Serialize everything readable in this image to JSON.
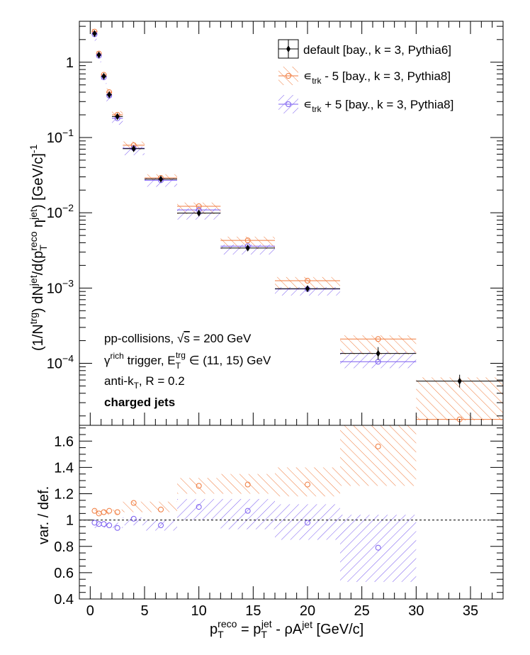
{
  "chart_data": [
    {
      "type": "scatter",
      "panel": "top",
      "xlim": [
        -1,
        38
      ],
      "ylim": [
        1.5e-05,
        3.5
      ],
      "log_y": true,
      "ylabel": "(1/N^trg) dN^jet/d(p_T^reco η^jet) [GeV/c]^-1",
      "ytick_labels": [
        "10^-4",
        "10^-3",
        "10^-2",
        "10^-1",
        "1"
      ],
      "legend": {
        "placement": "top-right",
        "entries": [
          "default [bay., k = 3, Pythia6]",
          "ε_trk - 5 [bay., k = 3, Pythia8]",
          "ε_trk + 5 [bay., k = 3, Pythia8]"
        ]
      },
      "annotations": [
        "pp-collisions, √s = 200 GeV",
        "γ^rich trigger, E_T^trg ∈ (11, 15) GeV",
        "anti-k_T, R = 0.2",
        "charged jets"
      ],
      "series": [
        {
          "name": "default [bay., k = 3, Pythia6]",
          "color": "#000000",
          "marker": "filled-diamond",
          "x_lo": [
            0.2,
            0.6,
            1.0,
            1.5,
            2.0,
            3.0,
            5.0,
            8.0,
            12.0,
            17.0,
            23.0,
            30.0
          ],
          "x_hi": [
            0.6,
            1.0,
            1.5,
            2.0,
            3.0,
            5.0,
            8.0,
            12.0,
            17.0,
            23.0,
            30.0,
            38.0
          ],
          "x": [
            0.4,
            0.8,
            1.25,
            1.75,
            2.5,
            4.0,
            6.5,
            10.0,
            14.5,
            20.0,
            26.5,
            34.0
          ],
          "y": [
            2.4,
            1.25,
            0.65,
            0.37,
            0.19,
            0.071,
            0.028,
            0.0099,
            0.0034,
            0.00098,
            0.000135,
            5.8e-05
          ]
        },
        {
          "name": "ε_trk - 5 [bay., k = 3, Pythia8]",
          "color": "#f07a3c",
          "marker": "open-circle",
          "x": [
            0.4,
            0.8,
            1.25,
            1.75,
            2.5,
            4.0,
            6.5,
            10.0,
            14.5,
            20.0,
            26.5,
            34.0
          ],
          "y": [
            2.55,
            1.3,
            0.68,
            0.4,
            0.2,
            0.079,
            0.029,
            0.0122,
            0.0043,
            0.00125,
            0.00021,
            1.8e-05
          ]
        },
        {
          "name": "ε_trk + 5 [bay., k = 3, Pythia8]",
          "color": "#7a5cf0",
          "marker": "open-circle",
          "x": [
            0.4,
            0.8,
            1.25,
            1.75,
            2.5,
            4.0,
            6.5,
            10.0,
            14.5,
            20.0,
            26.5
          ],
          "y": [
            2.35,
            1.22,
            0.63,
            0.36,
            0.18,
            0.072,
            0.027,
            0.0109,
            0.0036,
            0.00097,
            0.000105
          ]
        }
      ]
    },
    {
      "type": "scatter",
      "panel": "ratio",
      "xlim": [
        -1,
        38
      ],
      "ylim": [
        0.4,
        1.72
      ],
      "xlabel": "p_T^reco = p_T^jet - ρA^jet [GeV/c]",
      "ylabel": "var. / def.",
      "xtick_labels": [
        "0",
        "5",
        "10",
        "15",
        "20",
        "25",
        "30",
        "35"
      ],
      "ytick_labels": [
        "0.4",
        "0.6",
        "0.8",
        "1",
        "1.2",
        "1.4",
        "1.6"
      ],
      "reference_line": 1.0,
      "bins": [
        {
          "x_lo": 0.2,
          "x_hi": 3.0,
          "up_lo": 1.04,
          "up_hi": 1.08,
          "dn_lo": 0.94,
          "dn_hi": 0.98
        },
        {
          "x_lo": 3.0,
          "x_hi": 5.0,
          "up_lo": 1.06,
          "up_hi": 1.14,
          "dn_lo": 0.96,
          "dn_hi": 1.02
        },
        {
          "x_lo": 5.0,
          "x_hi": 8.0,
          "up_lo": 1.06,
          "up_hi": 1.14,
          "dn_lo": 0.92,
          "dn_hi": 1.0
        },
        {
          "x_lo": 8.0,
          "x_hi": 12.0,
          "up_lo": 1.2,
          "up_hi": 1.32,
          "dn_lo": 1.0,
          "dn_hi": 1.16
        },
        {
          "x_lo": 12.0,
          "x_hi": 17.0,
          "up_lo": 1.2,
          "up_hi": 1.35,
          "dn_lo": 0.93,
          "dn_hi": 1.16
        },
        {
          "x_lo": 17.0,
          "x_hi": 23.0,
          "up_lo": 1.18,
          "up_hi": 1.4,
          "dn_lo": 0.85,
          "dn_hi": 1.12
        },
        {
          "x_lo": 23.0,
          "x_hi": 30.0,
          "up_lo": 1.26,
          "up_hi": 1.8,
          "dn_lo": 0.53,
          "dn_hi": 1.04
        }
      ],
      "series": [
        {
          "name": "ε_trk - 5 [bay., k = 3, Pythia8]",
          "color": "#f07a3c",
          "x": [
            0.4,
            0.8,
            1.25,
            1.75,
            2.5,
            4.0,
            6.5,
            10.0,
            14.5,
            20.0,
            26.5
          ],
          "y": [
            1.07,
            1.05,
            1.06,
            1.07,
            1.06,
            1.13,
            1.08,
            1.26,
            1.27,
            1.27,
            1.56
          ]
        },
        {
          "name": "ε_trk + 5 [bay., k = 3, Pythia8]",
          "color": "#7a5cf0",
          "x": [
            0.4,
            0.8,
            1.25,
            1.75,
            2.5,
            4.0,
            6.5,
            10.0,
            14.5,
            20.0,
            26.5
          ],
          "y": [
            0.98,
            0.97,
            0.97,
            0.96,
            0.94,
            1.01,
            0.96,
            1.1,
            1.07,
            0.98,
            0.79
          ]
        }
      ]
    }
  ]
}
